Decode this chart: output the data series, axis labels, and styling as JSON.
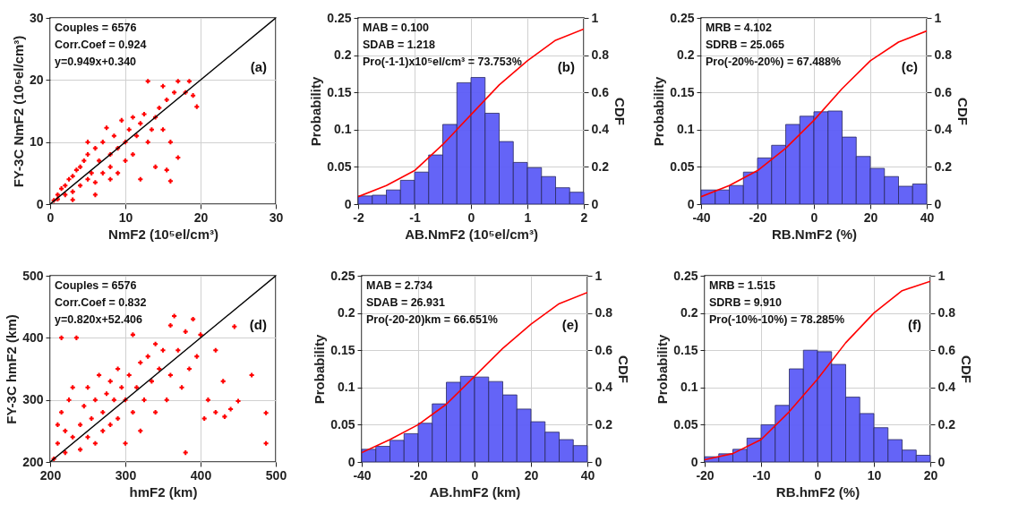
{
  "chart_data": [
    {
      "type": "scatter",
      "xlabel": "NmF2 (10⁵el/cm³)",
      "ylabel": "FY-3C NmF2 (10⁵el/cm³)",
      "xlim": [
        0,
        30
      ],
      "ylim": [
        0,
        30
      ],
      "xticks": [
        0,
        10,
        20,
        30
      ],
      "yticks": [
        0,
        10,
        20,
        30
      ],
      "grid": true,
      "annotations": [
        "Couples = 6576",
        "Corr.Coef = 0.924",
        "y=0.949x+0.340",
        "(a)"
      ],
      "series": [
        {
          "color": "#ff0000",
          "marker": "cross",
          "x": [
            0.5,
            1,
            1,
            1.5,
            2,
            2,
            2.5,
            3,
            3,
            3.5,
            4,
            4,
            4.5,
            5,
            5,
            5,
            5.5,
            6,
            6,
            6.5,
            7,
            7,
            7.5,
            8,
            8,
            8.5,
            9,
            9,
            9.5,
            10,
            10,
            10.5,
            11,
            11,
            11.5,
            12,
            12,
            12.5,
            13,
            13,
            13.5,
            14,
            14,
            14.5,
            15,
            15,
            15.5,
            15.5,
            16,
            16,
            16.5,
            17,
            17,
            18,
            18.5,
            19,
            19.5,
            3,
            6,
            8
          ],
          "values": [
            0.6,
            1.5,
            0.8,
            2.5,
            1.5,
            3,
            4,
            2,
            4.5,
            5.5,
            3,
            6,
            7,
            4,
            8,
            10,
            5,
            9,
            3.5,
            7,
            10,
            5,
            12.3,
            8,
            6,
            11,
            9,
            5,
            13.5,
            10,
            7,
            12,
            14,
            8,
            11,
            13,
            4,
            14.5,
            10,
            19.8,
            12,
            14,
            6,
            15.5,
            12,
            19,
            5.5,
            16.8,
            3.7,
            10,
            18,
            7.5,
            19.8,
            18,
            19.8,
            17.5,
            15.7,
            0.7,
            1.5,
            4
          ]
        },
        {
          "type": "line",
          "color": "#000000",
          "x": [
            0,
            30
          ],
          "values": [
            0,
            30
          ]
        }
      ]
    },
    {
      "type": "histogram",
      "xlabel": "AB.NmF2 (10⁵el/cm³)",
      "ylabel": "Probability",
      "y2label": "CDF",
      "xlim": [
        -2,
        2
      ],
      "ylim": [
        0,
        0.25
      ],
      "y2lim": [
        0,
        1
      ],
      "xticks": [
        -2,
        -1,
        0,
        1,
        2
      ],
      "yticks": [
        0,
        0.05,
        0.1,
        0.15,
        0.2,
        0.25
      ],
      "y2ticks": [
        0,
        0.2,
        0.4,
        0.6,
        0.8,
        1
      ],
      "grid": true,
      "annotations": [
        "MAB = 0.100",
        "SDAB = 1.218",
        "Pro(-1-1)x10⁵el/cm³ = 73.753%",
        "(b)"
      ],
      "bins": [
        -2,
        -1.75,
        -1.5,
        -1.25,
        -1,
        -0.75,
        -0.5,
        -0.25,
        0,
        0.25,
        0.5,
        0.75,
        1,
        1.25,
        1.5,
        1.75,
        2
      ],
      "series": [
        {
          "color": "#5c5cf7",
          "values": [
            0.011,
            0.012,
            0.019,
            0.032,
            0.043,
            0.066,
            0.107,
            0.163,
            0.17,
            0.122,
            0.084,
            0.056,
            0.049,
            0.037,
            0.022,
            0.016
          ]
        },
        {
          "type": "line",
          "axis": "y2",
          "color": "#ff0000",
          "x": [
            -2,
            -1.5,
            -1,
            -0.5,
            0,
            0.5,
            1,
            1.5,
            2
          ],
          "values": [
            0.04,
            0.1,
            0.18,
            0.32,
            0.48,
            0.64,
            0.77,
            0.88,
            0.94
          ]
        }
      ]
    },
    {
      "type": "histogram",
      "xlabel": "RB.NmF2 (%)",
      "ylabel": "Probability",
      "y2label": "CDF",
      "xlim": [
        -40,
        40
      ],
      "ylim": [
        0,
        0.25
      ],
      "y2lim": [
        0,
        1
      ],
      "xticks": [
        -40,
        -20,
        0,
        20,
        40
      ],
      "yticks": [
        0,
        0.05,
        0.1,
        0.15,
        0.2,
        0.25
      ],
      "y2ticks": [
        0,
        0.2,
        0.4,
        0.6,
        0.8,
        1
      ],
      "grid": true,
      "annotations": [
        "MRB = 4.102",
        "SDRB = 25.065",
        "Pro(-20%-20%) = 67.488%",
        "(c)"
      ],
      "bins": [
        -40,
        -35,
        -30,
        -25,
        -20,
        -15,
        -10,
        -5,
        0,
        5,
        10,
        15,
        20,
        25,
        30,
        35,
        40
      ],
      "series": [
        {
          "color": "#5c5cf7",
          "values": [
            0.019,
            0.019,
            0.025,
            0.043,
            0.062,
            0.079,
            0.107,
            0.118,
            0.124,
            0.125,
            0.09,
            0.064,
            0.048,
            0.037,
            0.024,
            0.027
          ]
        },
        {
          "type": "line",
          "axis": "y2",
          "color": "#ff0000",
          "x": [
            -40,
            -30,
            -20,
            -10,
            0,
            10,
            20,
            30,
            40
          ],
          "values": [
            0.04,
            0.1,
            0.18,
            0.3,
            0.45,
            0.62,
            0.77,
            0.87,
            0.93
          ]
        }
      ]
    },
    {
      "type": "scatter",
      "xlabel": "hmF2 (km)",
      "ylabel": "FY-3C hmF2 (km)",
      "xlim": [
        200,
        500
      ],
      "ylim": [
        200,
        500
      ],
      "xticks": [
        200,
        300,
        400,
        500
      ],
      "yticks": [
        200,
        300,
        400,
        500
      ],
      "grid": true,
      "annotations": [
        "Couples = 6576",
        "Corr.Coef = 0.832",
        "y=0.820x+52.406",
        "(d)"
      ],
      "series": [
        {
          "color": "#ff0000",
          "marker": "cross",
          "x": [
            205,
            210,
            210,
            215,
            220,
            220,
            225,
            230,
            230,
            235,
            240,
            240,
            245,
            250,
            250,
            255,
            260,
            260,
            265,
            270,
            270,
            275,
            280,
            280,
            285,
            290,
            290,
            295,
            300,
            300,
            305,
            310,
            310,
            315,
            320,
            320,
            325,
            330,
            335,
            340,
            340,
            345,
            350,
            355,
            360,
            360,
            365,
            370,
            375,
            380,
            380,
            385,
            390,
            395,
            400,
            405,
            410,
            420,
            420,
            430,
            432,
            440,
            445,
            450,
            468,
            487,
            487,
            215
          ],
          "values": [
            205,
            230,
            260,
            280,
            215,
            250,
            300,
            240,
            320,
            400,
            260,
            220,
            290,
            320,
            240,
            270,
            300,
            230,
            340,
            280,
            250,
            310,
            330,
            260,
            300,
            350,
            270,
            320,
            300,
            230,
            340,
            405,
            280,
            320,
            360,
            250,
            300,
            370,
            330,
            390,
            280,
            350,
            380,
            300,
            420,
            340,
            435,
            380,
            320,
            410,
            215,
            350,
            430,
            370,
            405,
            270,
            300,
            380,
            280,
            330,
            273,
            285,
            418,
            298,
            340,
            279,
            230,
            400
          ]
        },
        {
          "type": "line",
          "color": "#000000",
          "x": [
            200,
            500
          ],
          "values": [
            200,
            500
          ]
        }
      ]
    },
    {
      "type": "histogram",
      "xlabel": "AB.hmF2 (km)",
      "ylabel": "Probability",
      "y2label": "CDF",
      "xlim": [
        -40,
        40
      ],
      "ylim": [
        0,
        0.25
      ],
      "y2lim": [
        0,
        1
      ],
      "xticks": [
        -40,
        -20,
        0,
        20,
        40
      ],
      "yticks": [
        0,
        0.05,
        0.1,
        0.15,
        0.2,
        0.25
      ],
      "y2ticks": [
        0,
        0.2,
        0.4,
        0.6,
        0.8,
        1
      ],
      "grid": true,
      "annotations": [
        "MAB = 2.734",
        "SDAB = 26.931",
        "Pro(-20-20)km = 66.651%",
        "(e)"
      ],
      "bins": [
        -40,
        -35,
        -30,
        -25,
        -20,
        -15,
        -10,
        -5,
        0,
        5,
        10,
        15,
        20,
        25,
        30,
        35,
        40
      ],
      "series": [
        {
          "color": "#5c5cf7",
          "values": [
            0.017,
            0.021,
            0.029,
            0.038,
            0.052,
            0.078,
            0.107,
            0.115,
            0.114,
            0.108,
            0.09,
            0.071,
            0.054,
            0.04,
            0.03,
            0.022
          ]
        },
        {
          "type": "line",
          "axis": "y2",
          "color": "#ff0000",
          "x": [
            -40,
            -30,
            -20,
            -10,
            0,
            10,
            20,
            30,
            40
          ],
          "values": [
            0.05,
            0.12,
            0.2,
            0.31,
            0.46,
            0.61,
            0.74,
            0.85,
            0.91
          ]
        }
      ]
    },
    {
      "type": "histogram",
      "xlabel": "RB.hmF2 (%)",
      "ylabel": "Probability",
      "y2label": "CDF",
      "xlim": [
        -20,
        20
      ],
      "ylim": [
        0,
        0.25
      ],
      "y2lim": [
        0,
        1
      ],
      "xticks": [
        -20,
        -10,
        0,
        10,
        20
      ],
      "yticks": [
        0,
        0.05,
        0.1,
        0.15,
        0.2,
        0.25
      ],
      "y2ticks": [
        0,
        0.2,
        0.4,
        0.6,
        0.8,
        1
      ],
      "grid": true,
      "annotations": [
        "MRB = 1.515",
        "SDRB = 9.910",
        "Pro(-10%-10%) = 78.285%",
        "(f)"
      ],
      "bins": [
        -20,
        -17.5,
        -15,
        -12.5,
        -10,
        -7.5,
        -5,
        -2.5,
        0,
        2.5,
        5,
        7.5,
        10,
        12.5,
        15,
        17.5,
        20
      ],
      "series": [
        {
          "color": "#5c5cf7",
          "values": [
            0.007,
            0.011,
            0.017,
            0.032,
            0.05,
            0.076,
            0.125,
            0.15,
            0.148,
            0.131,
            0.087,
            0.065,
            0.046,
            0.03,
            0.016,
            0.009
          ]
        },
        {
          "type": "line",
          "axis": "y2",
          "color": "#ff0000",
          "x": [
            -20,
            -15,
            -10,
            -5,
            0,
            5,
            10,
            15,
            20
          ],
          "values": [
            0.012,
            0.045,
            0.12,
            0.27,
            0.445,
            0.64,
            0.8,
            0.92,
            0.97
          ]
        }
      ]
    }
  ]
}
